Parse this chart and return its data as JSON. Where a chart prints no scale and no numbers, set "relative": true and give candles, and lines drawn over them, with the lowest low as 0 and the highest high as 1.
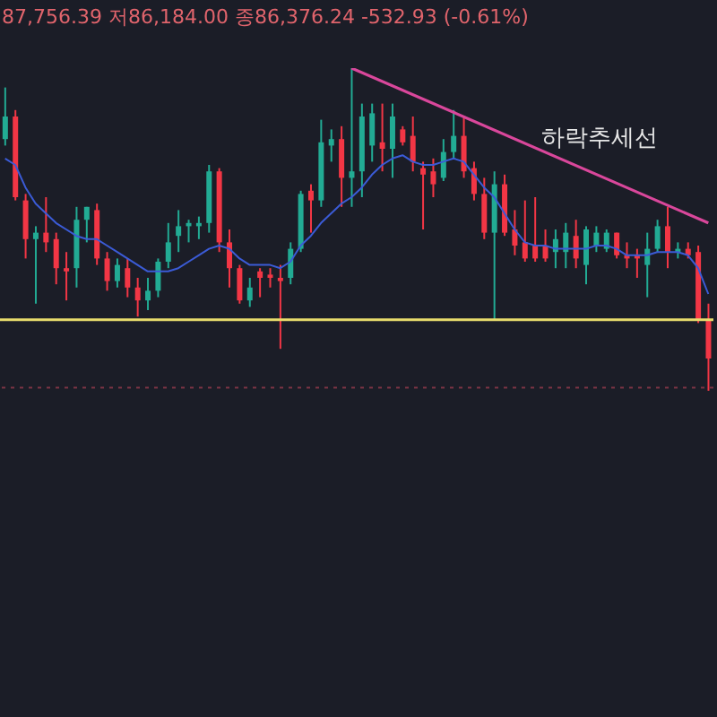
{
  "chart_data": {
    "type": "candlestick",
    "title": "87,756.39 저86,184.00 종86,376.24 -532.93 (-0.61%)",
    "relative": true,
    "tick_labels": false,
    "legend": false,
    "categories": [
      null,
      null,
      null,
      null,
      null,
      null,
      null,
      null,
      null,
      null,
      null,
      null,
      null,
      null,
      null,
      null,
      null,
      null,
      null,
      null,
      null,
      null,
      null,
      null,
      null,
      null,
      null,
      null,
      null,
      null,
      null,
      null,
      null,
      null,
      null,
      null,
      null,
      null,
      null,
      null,
      null,
      null,
      null,
      null,
      null,
      null,
      null,
      null,
      null,
      null,
      null,
      null,
      null,
      null,
      null,
      null,
      null,
      null,
      null,
      null,
      null,
      null,
      null,
      null,
      null,
      null,
      null,
      null,
      null,
      null
    ],
    "ohlc": [
      [
        0.78,
        0.94,
        0.76,
        0.85
      ],
      [
        0.85,
        0.87,
        0.59,
        0.6
      ],
      [
        0.59,
        0.61,
        0.41,
        0.47
      ],
      [
        0.47,
        0.51,
        0.27,
        0.49
      ],
      [
        0.49,
        0.6,
        0.43,
        0.46
      ],
      [
        0.47,
        0.49,
        0.33,
        0.38
      ],
      [
        0.38,
        0.43,
        0.28,
        0.37
      ],
      [
        0.38,
        0.57,
        0.32,
        0.53
      ],
      [
        0.53,
        0.57,
        0.46,
        0.57
      ],
      [
        0.56,
        0.58,
        0.39,
        0.41
      ],
      [
        0.41,
        0.43,
        0.31,
        0.34
      ],
      [
        0.34,
        0.41,
        0.32,
        0.39
      ],
      [
        0.38,
        0.41,
        0.29,
        0.32
      ],
      [
        0.32,
        0.35,
        0.23,
        0.28
      ],
      [
        0.28,
        0.35,
        0.25,
        0.31
      ],
      [
        0.31,
        0.41,
        0.29,
        0.4
      ],
      [
        0.4,
        0.52,
        0.38,
        0.46
      ],
      [
        0.48,
        0.56,
        0.43,
        0.51
      ],
      [
        0.51,
        0.53,
        0.46,
        0.52
      ],
      [
        0.51,
        0.54,
        0.47,
        0.52
      ],
      [
        0.52,
        0.7,
        0.49,
        0.68
      ],
      [
        0.68,
        0.69,
        0.43,
        0.46
      ],
      [
        0.46,
        0.5,
        0.32,
        0.38
      ],
      [
        0.38,
        0.39,
        0.27,
        0.28
      ],
      [
        0.28,
        0.35,
        0.26,
        0.32
      ],
      [
        0.37,
        0.38,
        0.29,
        0.35
      ],
      [
        0.36,
        0.38,
        0.32,
        0.35
      ],
      [
        0.35,
        0.39,
        0.13,
        0.34
      ],
      [
        0.35,
        0.46,
        0.33,
        0.44
      ],
      [
        0.44,
        0.62,
        0.43,
        0.61
      ],
      [
        0.62,
        0.64,
        0.49,
        0.59
      ],
      [
        0.59,
        0.84,
        0.57,
        0.77
      ],
      [
        0.76,
        0.81,
        0.71,
        0.78
      ],
      [
        0.78,
        0.82,
        0.57,
        0.66
      ],
      [
        0.66,
        1,
        0.57,
        0.68
      ],
      [
        0.68,
        0.89,
        0.6,
        0.85
      ],
      [
        0.76,
        0.89,
        0.71,
        0.86
      ],
      [
        0.77,
        0.89,
        0.68,
        0.75
      ],
      [
        0.75,
        0.89,
        0.66,
        0.85
      ],
      [
        0.81,
        0.82,
        0.76,
        0.77
      ],
      [
        0.79,
        0.85,
        0.68,
        0.71
      ],
      [
        0.69,
        0.71,
        0.5,
        0.67
      ],
      [
        0.68,
        0.72,
        0.6,
        0.64
      ],
      [
        0.66,
        0.78,
        0.65,
        0.74
      ],
      [
        0.74,
        0.87,
        0.72,
        0.79
      ],
      [
        0.79,
        0.85,
        0.66,
        0.68
      ],
      [
        0.69,
        0.71,
        0.59,
        0.61
      ],
      [
        0.61,
        0.66,
        0.47,
        0.49
      ],
      [
        0.49,
        0.68,
        0.22,
        0.64
      ],
      [
        0.64,
        0.67,
        0.48,
        0.49
      ],
      [
        0.5,
        0.56,
        0.42,
        0.45
      ],
      [
        0.46,
        0.59,
        0.4,
        0.41
      ],
      [
        0.45,
        0.6,
        0.4,
        0.41
      ],
      [
        0.45,
        0.5,
        0.4,
        0.41
      ],
      [
        0.43,
        0.5,
        0.38,
        0.47
      ],
      [
        0.43,
        0.52,
        0.38,
        0.49
      ],
      [
        0.48,
        0.53,
        0.38,
        0.41
      ],
      [
        0.39,
        0.51,
        0.33,
        0.5
      ],
      [
        0.45,
        0.51,
        0.43,
        0.49
      ],
      [
        0.44,
        0.5,
        0.43,
        0.49
      ],
      [
        0.49,
        0.49,
        0.41,
        0.42
      ],
      [
        0.42,
        0.46,
        0.38,
        0.41
      ],
      [
        0.42,
        0.44,
        0.35,
        0.41
      ],
      [
        0.39,
        0.49,
        0.29,
        0.44
      ],
      [
        0.44,
        0.53,
        0.43,
        0.51
      ],
      [
        0.51,
        0.57,
        0.38,
        0.43
      ],
      [
        0.43,
        0.46,
        0.41,
        0.44
      ],
      [
        0.44,
        0.46,
        0.41,
        0.42
      ],
      [
        0.43,
        0.45,
        0.21,
        0.22
      ],
      [
        0.22,
        0.27,
        0,
        0.1
      ]
    ],
    "colors": [
      "#22ab94",
      "#f23645",
      "#f23645",
      "#22ab94",
      "#f23645",
      "#f23645",
      "#f23645",
      "#22ab94",
      "#22ab94",
      "#f23645",
      "#f23645",
      "#22ab94",
      "#f23645",
      "#f23645",
      "#22ab94",
      "#22ab94",
      "#22ab94",
      "#22ab94",
      "#22ab94",
      "#22ab94",
      "#22ab94",
      "#f23645",
      "#f23645",
      "#f23645",
      "#22ab94",
      "#f23645",
      "#f23645",
      "#f23645",
      "#22ab94",
      "#22ab94",
      "#f23645",
      "#22ab94",
      "#22ab94",
      "#f23645",
      "#22ab94",
      "#22ab94",
      "#22ab94",
      "#f23645",
      "#22ab94",
      "#f23645",
      "#f23645",
      "#f23645",
      "#f23645",
      "#22ab94",
      "#22ab94",
      "#f23645",
      "#f23645",
      "#f23645",
      "#22ab94",
      "#f23645",
      "#f23645",
      "#f23645",
      "#f23645",
      "#f23645",
      "#22ab94",
      "#22ab94",
      "#f23645",
      "#22ab94",
      "#22ab94",
      "#22ab94",
      "#f23645",
      "#f23645",
      "#f23645",
      "#22ab94",
      "#22ab94",
      "#f23645",
      "#22ab94",
      "#f23645",
      "#f23645",
      "#f23645"
    ],
    "series": [
      {
        "type": "line",
        "color": "#3b5bd6",
        "values": [
          0.72,
          0.7,
          0.63,
          0.58,
          0.55,
          0.52,
          0.5,
          0.48,
          0.47,
          0.47,
          0.45,
          0.43,
          0.41,
          0.39,
          0.37,
          0.37,
          0.37,
          0.38,
          0.4,
          0.42,
          0.44,
          0.45,
          0.44,
          0.41,
          0.39,
          0.39,
          0.39,
          0.38,
          0.4,
          0.45,
          0.48,
          0.52,
          0.55,
          0.58,
          0.6,
          0.63,
          0.67,
          0.7,
          0.72,
          0.73,
          0.71,
          0.7,
          0.7,
          0.71,
          0.72,
          0.71,
          0.67,
          0.63,
          0.6,
          0.55,
          0.5,
          0.46,
          0.45,
          0.45,
          0.44,
          0.44,
          0.44,
          0.44,
          0.45,
          0.45,
          0.44,
          0.42,
          0.42,
          0.42,
          0.43,
          0.43,
          0.43,
          0.42,
          0.38,
          0.3
        ]
      },
      {
        "type": "line",
        "color": "#d9479b",
        "values": [
          null,
          null,
          null,
          null,
          null,
          null,
          null,
          null,
          null,
          null,
          null,
          null,
          null,
          null,
          null,
          null,
          null,
          null,
          null,
          null,
          null,
          null,
          null,
          null,
          null,
          null,
          null,
          null,
          null,
          null,
          null,
          null,
          null,
          null,
          1,
          null,
          null,
          null,
          null,
          null,
          null,
          null,
          null,
          null,
          null,
          null,
          null,
          null,
          null,
          null,
          null,
          null,
          null,
          null,
          null,
          null,
          null,
          null,
          null,
          null,
          null,
          null,
          null,
          null,
          null,
          null,
          null,
          null,
          null,
          0.52
        ]
      }
    ],
    "ref_lines": [
      {
        "axis": "y",
        "value": 0.22,
        "color": "#e8dc6c",
        "line_style": "solid"
      },
      {
        "axis": "y",
        "value": 0.01,
        "color": "#7a3444",
        "line_style": "dotted"
      }
    ],
    "annotations": [
      "하락추세선"
    ]
  }
}
